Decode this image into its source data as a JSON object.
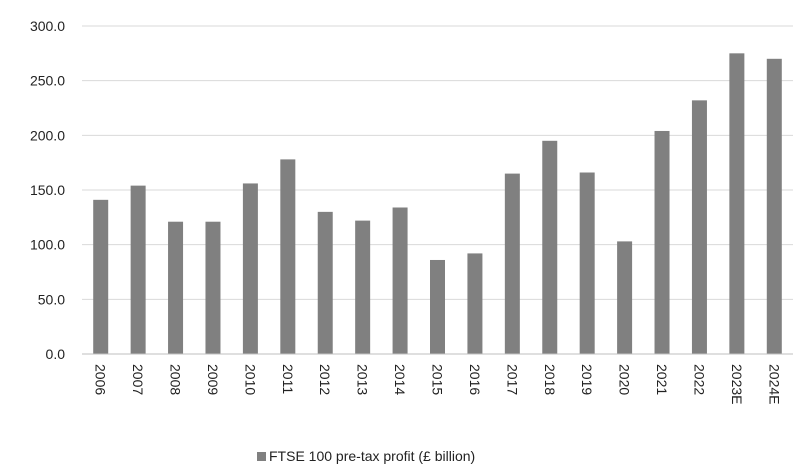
{
  "chart_data": {
    "type": "bar",
    "categories": [
      "2006",
      "2007",
      "2008",
      "2009",
      "2010",
      "2011",
      "2012",
      "2013",
      "2014",
      "2015",
      "2016",
      "2017",
      "2018",
      "2019",
      "2020",
      "2021",
      "2022",
      "2023E",
      "2024E"
    ],
    "series": [
      {
        "name": "FTSE 100 pre-tax profit (£ billion)",
        "values": [
          141,
          154,
          121,
          121,
          156,
          178,
          130,
          122,
          134,
          86,
          92,
          165,
          195,
          166,
          103,
          204,
          232,
          275,
          270
        ],
        "color": "#808080"
      }
    ],
    "yticks": [
      "0.0",
      "50.0",
      "100.0",
      "150.0",
      "200.0",
      "250.0",
      "300.0"
    ],
    "ylim": [
      0,
      300
    ],
    "grid": true,
    "legend_position": "bottom"
  }
}
